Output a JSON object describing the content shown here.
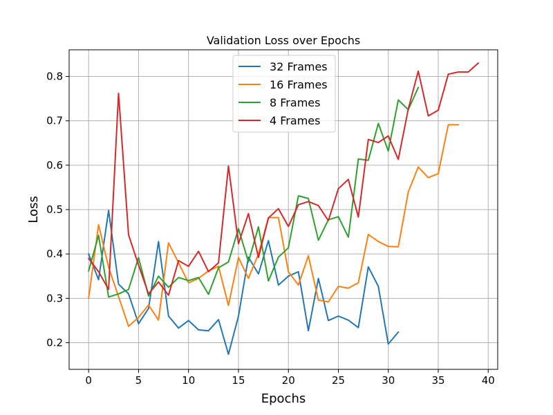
{
  "chart_data": {
    "type": "line",
    "title": "Validation Loss over Epochs",
    "xlabel": "Epochs",
    "ylabel": "Loss",
    "xlim": [
      -1.95,
      40.95
    ],
    "ylim": [
      0.14,
      0.86
    ],
    "xticks": [
      0,
      5,
      10,
      15,
      20,
      25,
      30,
      35,
      40
    ],
    "yticks": [
      0.2,
      0.3,
      0.4,
      0.5,
      0.6,
      0.7,
      0.8
    ],
    "ytick_labels": [
      "0.2",
      "0.3",
      "0.4",
      "0.5",
      "0.6",
      "0.7",
      "0.8"
    ],
    "grid": true,
    "legend_position": "upper center",
    "series": [
      {
        "name": "32 Frames",
        "color": "#1f77b4",
        "x": [
          0,
          1,
          2,
          3,
          4,
          5,
          6,
          7,
          8,
          9,
          10,
          11,
          12,
          13,
          14,
          15,
          16,
          17,
          18,
          19,
          20,
          21,
          22,
          23,
          24,
          25,
          26,
          27,
          28,
          29,
          30,
          31
        ],
        "values": [
          0.4,
          0.342,
          0.498,
          0.332,
          0.31,
          0.243,
          0.277,
          0.428,
          0.26,
          0.233,
          0.25,
          0.229,
          0.227,
          0.252,
          0.174,
          0.26,
          0.393,
          0.355,
          0.43,
          0.33,
          0.35,
          0.36,
          0.227,
          0.345,
          0.25,
          0.26,
          0.251,
          0.234,
          0.371,
          0.327,
          0.197,
          0.224
        ]
      },
      {
        "name": "16 Frames",
        "color": "#ff7f0e",
        "x": [
          0,
          1,
          2,
          3,
          4,
          5,
          6,
          7,
          8,
          9,
          10,
          11,
          12,
          13,
          14,
          15,
          16,
          17,
          18,
          19,
          20,
          21,
          22,
          23,
          24,
          25,
          26,
          27,
          28,
          29,
          30,
          31,
          32,
          33,
          34,
          35,
          36,
          37
        ],
        "values": [
          0.3,
          0.466,
          0.37,
          0.304,
          0.237,
          0.257,
          0.285,
          0.251,
          0.425,
          0.38,
          0.335,
          0.345,
          0.362,
          0.372,
          0.284,
          0.392,
          0.345,
          0.4,
          0.482,
          0.482,
          0.36,
          0.33,
          0.396,
          0.296,
          0.292,
          0.327,
          0.323,
          0.335,
          0.444,
          0.428,
          0.417,
          0.416,
          0.54,
          0.596,
          0.572,
          0.581,
          0.691,
          0.691
        ]
      },
      {
        "name": "8 Frames",
        "color": "#2ca02c",
        "x": [
          0,
          1,
          2,
          3,
          4,
          5,
          6,
          7,
          8,
          9,
          10,
          11,
          12,
          13,
          14,
          15,
          16,
          17,
          18,
          19,
          20,
          21,
          22,
          23,
          24,
          25,
          26,
          27,
          28,
          29,
          30,
          31,
          32,
          33
        ],
        "values": [
          0.362,
          0.442,
          0.303,
          0.31,
          0.32,
          0.392,
          0.305,
          0.35,
          0.325,
          0.347,
          0.34,
          0.347,
          0.309,
          0.369,
          0.382,
          0.457,
          0.382,
          0.461,
          0.339,
          0.393,
          0.414,
          0.531,
          0.525,
          0.431,
          0.477,
          0.484,
          0.438,
          0.614,
          0.611,
          0.694,
          0.632,
          0.747,
          0.725,
          0.775
        ]
      },
      {
        "name": "4 Frames",
        "color": "#d62728",
        "x": [
          0,
          1,
          2,
          3,
          4,
          5,
          6,
          7,
          8,
          9,
          10,
          11,
          12,
          13,
          14,
          15,
          16,
          17,
          18,
          19,
          20,
          21,
          22,
          23,
          24,
          25,
          26,
          27,
          28,
          29,
          30,
          31,
          32,
          33,
          34,
          35,
          36,
          37,
          38,
          39
        ],
        "values": [
          0.39,
          0.36,
          0.32,
          0.762,
          0.443,
          0.375,
          0.31,
          0.337,
          0.307,
          0.385,
          0.372,
          0.406,
          0.36,
          0.38,
          0.598,
          0.423,
          0.491,
          0.392,
          0.481,
          0.502,
          0.462,
          0.511,
          0.518,
          0.509,
          0.475,
          0.547,
          0.568,
          0.483,
          0.658,
          0.651,
          0.666,
          0.613,
          0.727,
          0.812,
          0.711,
          0.724,
          0.805,
          0.81,
          0.81,
          0.83
        ]
      }
    ]
  }
}
